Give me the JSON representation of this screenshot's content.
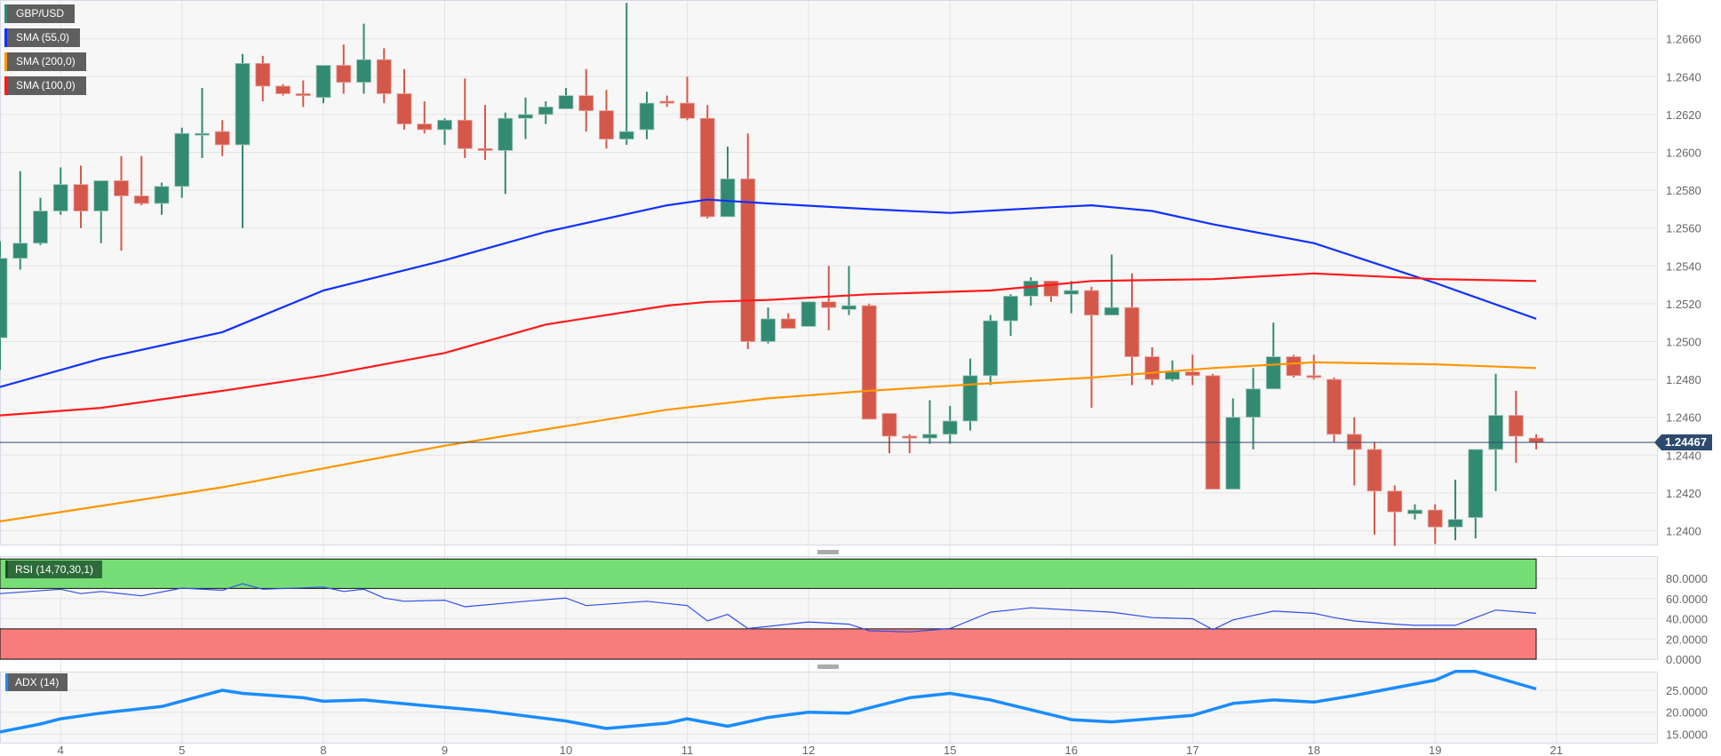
{
  "legend": {
    "symbol": {
      "label": "GBP/USD",
      "color": "#338a72"
    },
    "sma55": {
      "label": "SMA (55,0)",
      "color": "#1030ff"
    },
    "sma200": {
      "label": "SMA (200,0)",
      "color": "#ff9500"
    },
    "sma100": {
      "label": "SMA (100,0)",
      "color": "#ff1a1a"
    }
  },
  "current_price": "1.24467",
  "rsi_label": "RSI (14,70,30,1)",
  "adx_label": "ADX (14)",
  "colors": {
    "up": "#338a72",
    "down": "#d4584a",
    "rsi": "#2f4fe8",
    "adx": "#1a8cff",
    "overbought_zone": "#77dd77",
    "oversold_zone": "#f87c7c",
    "price_line": "#2c4a6e"
  },
  "chart_data": [
    {
      "type": "candlestick",
      "title": "GBP/USD",
      "ylim": [
        1.2388,
        1.268
      ],
      "y_ticks": [
        "1.2400",
        "1.2420",
        "1.2440",
        "1.2460",
        "1.2480",
        "1.2500",
        "1.2520",
        "1.2540",
        "1.2560",
        "1.2580",
        "1.2600",
        "1.2620",
        "1.2640",
        "1.2660"
      ],
      "x_ticks": [
        {
          "label": "4",
          "candle": 3
        },
        {
          "label": "5",
          "candle": 9
        },
        {
          "label": "8",
          "candle": 16
        },
        {
          "label": "9",
          "candle": 22
        },
        {
          "label": "10",
          "candle": 28
        },
        {
          "label": "11",
          "candle": 34
        },
        {
          "label": "12",
          "candle": 40
        },
        {
          "label": "15",
          "candle": 47
        },
        {
          "label": "16",
          "candle": 53
        },
        {
          "label": "17",
          "candle": 59
        },
        {
          "label": "18",
          "candle": 65
        },
        {
          "label": "19",
          "candle": 71
        },
        {
          "label": "21",
          "candle": 77
        }
      ],
      "grid": true,
      "candles_ohlc": [
        [
          1.2502,
          1.2553,
          1.2485,
          1.2544
        ],
        [
          1.2544,
          1.259,
          1.2538,
          1.2552
        ],
        [
          1.2552,
          1.2576,
          1.2551,
          1.2569
        ],
        [
          1.2569,
          1.2592,
          1.2567,
          1.2583
        ],
        [
          1.2583,
          1.2593,
          1.256,
          1.2569
        ],
        [
          1.2569,
          1.2585,
          1.2552,
          1.2585
        ],
        [
          1.2585,
          1.2598,
          1.2548,
          1.2577
        ],
        [
          1.2577,
          1.2598,
          1.2572,
          1.2573
        ],
        [
          1.2573,
          1.2584,
          1.2567,
          1.2582
        ],
        [
          1.2582,
          1.2613,
          1.2576,
          1.261
        ],
        [
          1.261,
          1.2634,
          1.2597,
          1.261
        ],
        [
          1.2611,
          1.2617,
          1.2598,
          1.2604
        ],
        [
          1.2604,
          1.2652,
          1.256,
          1.2647
        ],
        [
          1.2647,
          1.2651,
          1.2627,
          1.2635
        ],
        [
          1.2635,
          1.2636,
          1.263,
          1.2631
        ],
        [
          1.2631,
          1.2638,
          1.2624,
          1.263
        ],
        [
          1.2629,
          1.2646,
          1.2626,
          1.2646
        ],
        [
          1.2646,
          1.2657,
          1.2631,
          1.2637
        ],
        [
          1.2637,
          1.2668,
          1.2631,
          1.2649
        ],
        [
          1.2649,
          1.2655,
          1.2626,
          1.2631
        ],
        [
          1.2631,
          1.2644,
          1.2612,
          1.2615
        ],
        [
          1.2615,
          1.2627,
          1.261,
          1.2612
        ],
        [
          1.2612,
          1.2618,
          1.2604,
          1.2617
        ],
        [
          1.2617,
          1.2639,
          1.2597,
          1.2602
        ],
        [
          1.2602,
          1.2625,
          1.2596,
          1.2601
        ],
        [
          1.2601,
          1.2621,
          1.2578,
          1.2618
        ],
        [
          1.2618,
          1.2629,
          1.2607,
          1.262
        ],
        [
          1.262,
          1.2627,
          1.2615,
          1.2624
        ],
        [
          1.2623,
          1.2634,
          1.2623,
          1.263
        ],
        [
          1.263,
          1.2644,
          1.2611,
          1.2622
        ],
        [
          1.2622,
          1.2633,
          1.2602,
          1.2607
        ],
        [
          1.2607,
          1.2679,
          1.2604,
          1.2611
        ],
        [
          1.2612,
          1.2632,
          1.2607,
          1.2626
        ],
        [
          1.2627,
          1.263,
          1.2624,
          1.2626
        ],
        [
          1.2626,
          1.264,
          1.2617,
          1.2618
        ],
        [
          1.2618,
          1.2625,
          1.2565,
          1.2566
        ],
        [
          1.2566,
          1.2603,
          1.2566,
          1.2586
        ],
        [
          1.2586,
          1.261,
          1.2496,
          1.25
        ],
        [
          1.25,
          1.2518,
          1.2499,
          1.2512
        ],
        [
          1.2512,
          1.2515,
          1.2507,
          1.2507
        ],
        [
          1.2508,
          1.2521,
          1.2508,
          1.2521
        ],
        [
          1.2521,
          1.254,
          1.2506,
          1.2518
        ],
        [
          1.2517,
          1.254,
          1.2514,
          1.2519
        ],
        [
          1.2519,
          1.252,
          1.2459,
          1.2459
        ],
        [
          1.2462,
          1.2462,
          1.2441,
          1.245
        ],
        [
          1.245,
          1.2451,
          1.2441,
          1.2449
        ],
        [
          1.2449,
          1.2469,
          1.2446,
          1.2451
        ],
        [
          1.2451,
          1.2466,
          1.2446,
          1.2458
        ],
        [
          1.2458,
          1.2491,
          1.2453,
          1.2482
        ],
        [
          1.2482,
          1.2514,
          1.2477,
          1.2511
        ],
        [
          1.2511,
          1.2525,
          1.2503,
          1.2524
        ],
        [
          1.2524,
          1.2534,
          1.2519,
          1.2532
        ],
        [
          1.2532,
          1.2532,
          1.2521,
          1.2524
        ],
        [
          1.2525,
          1.2532,
          1.2515,
          1.2527
        ],
        [
          1.2527,
          1.2529,
          1.2465,
          1.2514
        ],
        [
          1.2514,
          1.2546,
          1.2514,
          1.2518
        ],
        [
          1.2518,
          1.2536,
          1.2477,
          1.2492
        ],
        [
          1.2492,
          1.2497,
          1.2477,
          1.248
        ],
        [
          1.248,
          1.249,
          1.2479,
          1.2484
        ],
        [
          1.2484,
          1.2493,
          1.2477,
          1.2482
        ],
        [
          1.2482,
          1.2483,
          1.2422,
          1.2422
        ],
        [
          1.2422,
          1.247,
          1.2422,
          1.246
        ],
        [
          1.246,
          1.2486,
          1.2443,
          1.2475
        ],
        [
          1.2475,
          1.251,
          1.2475,
          1.2492
        ],
        [
          1.2492,
          1.2493,
          1.2481,
          1.2482
        ],
        [
          1.2482,
          1.2493,
          1.248,
          1.2481
        ],
        [
          1.248,
          1.2481,
          1.2447,
          1.2451
        ],
        [
          1.2451,
          1.246,
          1.2424,
          1.2443
        ],
        [
          1.2443,
          1.2447,
          1.2398,
          1.2421
        ],
        [
          1.2421,
          1.2424,
          1.2392,
          1.241
        ],
        [
          1.2409,
          1.2414,
          1.2406,
          1.2411
        ],
        [
          1.2411,
          1.2414,
          1.2393,
          1.2402
        ],
        [
          1.2402,
          1.2427,
          1.2395,
          1.2406
        ],
        [
          1.2407,
          1.2443,
          1.2396,
          1.2443
        ],
        [
          1.2443,
          1.2483,
          1.2421,
          1.2461
        ],
        [
          1.2461,
          1.2474,
          1.2436,
          1.245
        ],
        [
          1.2449,
          1.2451,
          1.2443,
          1.24467
        ]
      ],
      "series": [
        {
          "name": "SMA (55,0)",
          "points": [
            [
              0,
              1.2476
            ],
            [
              5,
              1.2491
            ],
            [
              11,
              1.2505
            ],
            [
              16,
              1.2527
            ],
            [
              22,
              1.2543
            ],
            [
              27,
              1.2558
            ],
            [
              33,
              1.2572
            ],
            [
              35,
              1.2575
            ],
            [
              38,
              1.2573
            ],
            [
              43,
              1.257
            ],
            [
              47,
              1.2568
            ],
            [
              52,
              1.2571
            ],
            [
              54,
              1.2572
            ],
            [
              57,
              1.2569
            ],
            [
              60,
              1.2562
            ],
            [
              65,
              1.2552
            ],
            [
              71,
              1.2531
            ],
            [
              76,
              1.2512
            ]
          ]
        },
        {
          "name": "SMA (100,0)",
          "points": [
            [
              0,
              1.2461
            ],
            [
              5,
              1.2465
            ],
            [
              11,
              1.2474
            ],
            [
              16,
              1.2482
            ],
            [
              22,
              1.2494
            ],
            [
              27,
              1.2509
            ],
            [
              33,
              1.2519
            ],
            [
              35,
              1.2521
            ],
            [
              38,
              1.2522
            ],
            [
              43,
              1.2525
            ],
            [
              49,
              1.2527
            ],
            [
              54,
              1.2532
            ],
            [
              60,
              1.2533
            ],
            [
              65,
              1.2536
            ],
            [
              71,
              1.2533
            ],
            [
              76,
              1.2532
            ]
          ]
        },
        {
          "name": "SMA (200,0)",
          "points": [
            [
              0,
              1.2405
            ],
            [
              11,
              1.2423
            ],
            [
              22,
              1.2445
            ],
            [
              33,
              1.2464
            ],
            [
              38,
              1.247
            ],
            [
              43,
              1.2474
            ],
            [
              49,
              1.2478
            ],
            [
              54,
              1.2481
            ],
            [
              60,
              1.2486
            ],
            [
              65,
              1.2489
            ],
            [
              71,
              1.2488
            ],
            [
              76,
              1.2486
            ]
          ]
        }
      ]
    },
    {
      "type": "line",
      "title": "RSI (14,70,30,1)",
      "ylim": [
        0,
        100
      ],
      "y_ticks": [
        "80.0000",
        "60.0000",
        "40.0000",
        "20.0000",
        "0.0000"
      ],
      "zones": {
        "overbought": 70,
        "oversold": 30
      },
      "points": [
        [
          0,
          64.9
        ],
        [
          3,
          69.2
        ],
        [
          4,
          64.9
        ],
        [
          5,
          67
        ],
        [
          7,
          62.7
        ],
        [
          9,
          70.3
        ],
        [
          11,
          68.1
        ],
        [
          12,
          74.6
        ],
        [
          13,
          69.2
        ],
        [
          16,
          71.4
        ],
        [
          17,
          67
        ],
        [
          18,
          69.2
        ],
        [
          19,
          60.5
        ],
        [
          20,
          57.3
        ],
        [
          22,
          58.4
        ],
        [
          23,
          51.9
        ],
        [
          26,
          57.3
        ],
        [
          28,
          60.5
        ],
        [
          29,
          53
        ],
        [
          32,
          57.3
        ],
        [
          34,
          53
        ],
        [
          35,
          37.8
        ],
        [
          36,
          44.3
        ],
        [
          37,
          30.3
        ],
        [
          38,
          32.4
        ],
        [
          40,
          36.8
        ],
        [
          42,
          34.6
        ],
        [
          43,
          28.1
        ],
        [
          45,
          27
        ],
        [
          47,
          30.3
        ],
        [
          49,
          46.5
        ],
        [
          51,
          50.8
        ],
        [
          55,
          46.5
        ],
        [
          57,
          41.1
        ],
        [
          59,
          40
        ],
        [
          60,
          29.2
        ],
        [
          61,
          38.9
        ],
        [
          63,
          47.6
        ],
        [
          65,
          45.4
        ],
        [
          66,
          41.1
        ],
        [
          67,
          37.8
        ],
        [
          69,
          34.6
        ],
        [
          70,
          33.5
        ],
        [
          72,
          33.5
        ],
        [
          73,
          41.1
        ],
        [
          74,
          48.6
        ],
        [
          76,
          45.4
        ]
      ]
    },
    {
      "type": "line",
      "title": "ADX (14)",
      "ylim": [
        13,
        30
      ],
      "y_ticks": [
        "25.0000",
        "20.0000",
        "15.0000"
      ],
      "points": [
        [
          0,
          15.5
        ],
        [
          2,
          17.3
        ],
        [
          3,
          18.5
        ],
        [
          5,
          19.8
        ],
        [
          8,
          21.3
        ],
        [
          11,
          25
        ],
        [
          12,
          24.3
        ],
        [
          15,
          23.3
        ],
        [
          16,
          22.5
        ],
        [
          18,
          22.8
        ],
        [
          21,
          21.5
        ],
        [
          24,
          20.3
        ],
        [
          28,
          18
        ],
        [
          30,
          16.3
        ],
        [
          33,
          17.5
        ],
        [
          34,
          18.5
        ],
        [
          36,
          16.8
        ],
        [
          38,
          18.8
        ],
        [
          40,
          20
        ],
        [
          42,
          19.8
        ],
        [
          45,
          23.3
        ],
        [
          47,
          24.3
        ],
        [
          49,
          22.8
        ],
        [
          53,
          18.3
        ],
        [
          55,
          17.8
        ],
        [
          59,
          19.3
        ],
        [
          61,
          22
        ],
        [
          63,
          22.8
        ],
        [
          65,
          22.3
        ],
        [
          67,
          23.8
        ],
        [
          71,
          27.3
        ],
        [
          72,
          29.3
        ],
        [
          73,
          29.3
        ],
        [
          76,
          25.3
        ]
      ]
    }
  ]
}
